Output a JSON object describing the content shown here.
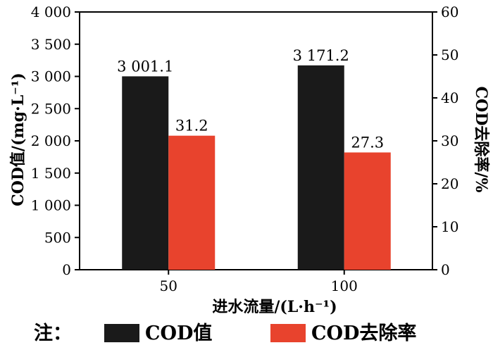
{
  "chart_data": {
    "type": "bar",
    "categories": [
      "50",
      "100"
    ],
    "series": [
      {
        "name": "COD值",
        "axis": "left",
        "color": "#1a1a1a",
        "values": [
          3001.1,
          3171.2
        ],
        "labels": [
          "3 001.1",
          "3 171.2"
        ]
      },
      {
        "name": "COD去除率",
        "axis": "right",
        "color": "#e8432d",
        "values": [
          31.2,
          27.3
        ],
        "labels": [
          "31.2",
          "27.3"
        ]
      }
    ],
    "xlabel": "进水流量/(L·h⁻¹)",
    "ylabel_left": "COD值/(mg·L⁻¹)",
    "ylabel_right": "COD去除率/%",
    "ylim_left": [
      0,
      4000
    ],
    "ylim_right": [
      0,
      60
    ],
    "yticks_left": [
      "0",
      "500",
      "1 000",
      "1 500",
      "2 000",
      "2 500",
      "3 000",
      "3 500",
      "4 000"
    ],
    "yticks_right": [
      "0",
      "10",
      "20",
      "30",
      "40",
      "50",
      "60"
    ],
    "legend_prefix": "注：",
    "legend_placement": "bottom",
    "grid": false
  }
}
